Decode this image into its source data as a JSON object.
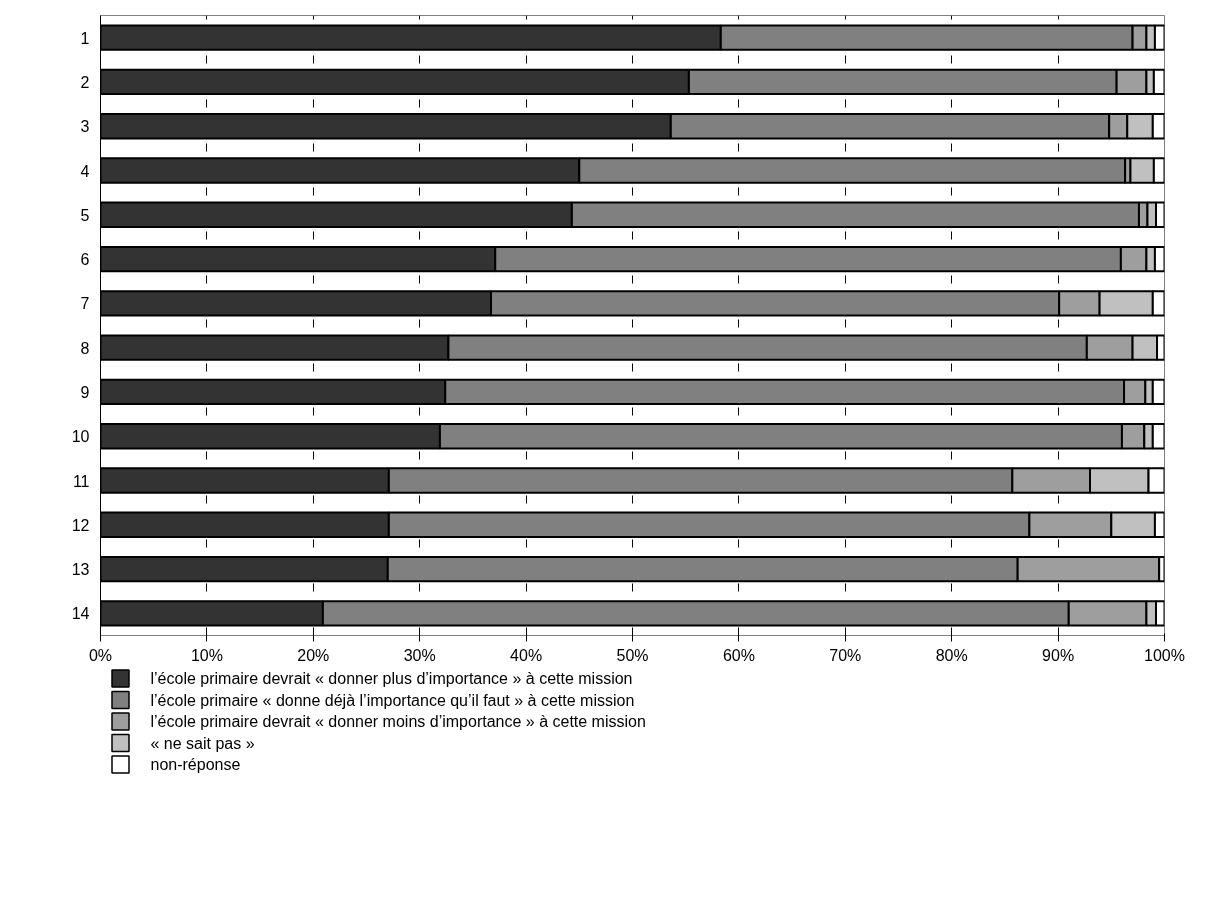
{
  "chart_data": {
    "type": "bar",
    "orientation": "horizontal",
    "stacked": true,
    "categories": [
      "1",
      "2",
      "3",
      "4",
      "5",
      "6",
      "7",
      "8",
      "9",
      "10",
      "11",
      "12",
      "13",
      "14"
    ],
    "series": [
      {
        "name": "l’école primaire devrait « donner plus d’importance » à cette mission",
        "color": "#333333",
        "values": [
          58.3,
          55.3,
          53.6,
          45.0,
          44.3,
          37.1,
          36.7,
          32.7,
          32.4,
          31.9,
          27.1,
          27.1,
          27.0,
          20.9
        ]
      },
      {
        "name": "l’école primaire « donne déjà l’importance qu’il faut » à cette mission",
        "color": "#808080",
        "values": [
          38.7,
          40.2,
          41.2,
          51.3,
          53.3,
          58.8,
          53.4,
          60.0,
          63.8,
          64.1,
          58.6,
          60.2,
          59.2,
          70.1
        ]
      },
      {
        "name": "l’école primaire devrait « donner moins d’importance » à cette mission",
        "color": "#9e9e9e",
        "values": [
          1.3,
          2.8,
          1.7,
          0.5,
          0.8,
          2.4,
          3.8,
          4.3,
          2.0,
          2.1,
          7.3,
          7.7,
          13.3,
          7.3
        ]
      },
      {
        "name": "« ne sait pas »",
        "color": "#c0c0c0",
        "values": [
          0.8,
          0.7,
          2.4,
          2.2,
          0.8,
          0.8,
          5.0,
          2.3,
          0.7,
          0.8,
          5.5,
          4.1,
          0.0,
          0.9
        ]
      },
      {
        "name": "non-réponse",
        "color": "#ffffff",
        "values": [
          0.9,
          1.0,
          1.1,
          1.0,
          0.8,
          0.9,
          1.1,
          0.7,
          1.1,
          1.1,
          1.5,
          0.9,
          0.5,
          0.8
        ]
      }
    ],
    "xlim": [
      0,
      100
    ],
    "xticks": [
      {
        "value": 0,
        "label": "0%"
      },
      {
        "value": 10,
        "label": "10%"
      },
      {
        "value": 20,
        "label": "20%"
      },
      {
        "value": 30,
        "label": "30%"
      },
      {
        "value": 40,
        "label": "40%"
      },
      {
        "value": 50,
        "label": "50%"
      },
      {
        "value": 60,
        "label": "60%"
      },
      {
        "value": 70,
        "label": "70%"
      },
      {
        "value": 80,
        "label": "80%"
      },
      {
        "value": 90,
        "label": "90%"
      },
      {
        "value": 100,
        "label": "100%"
      }
    ],
    "grid": "x",
    "legend": "bottom"
  }
}
